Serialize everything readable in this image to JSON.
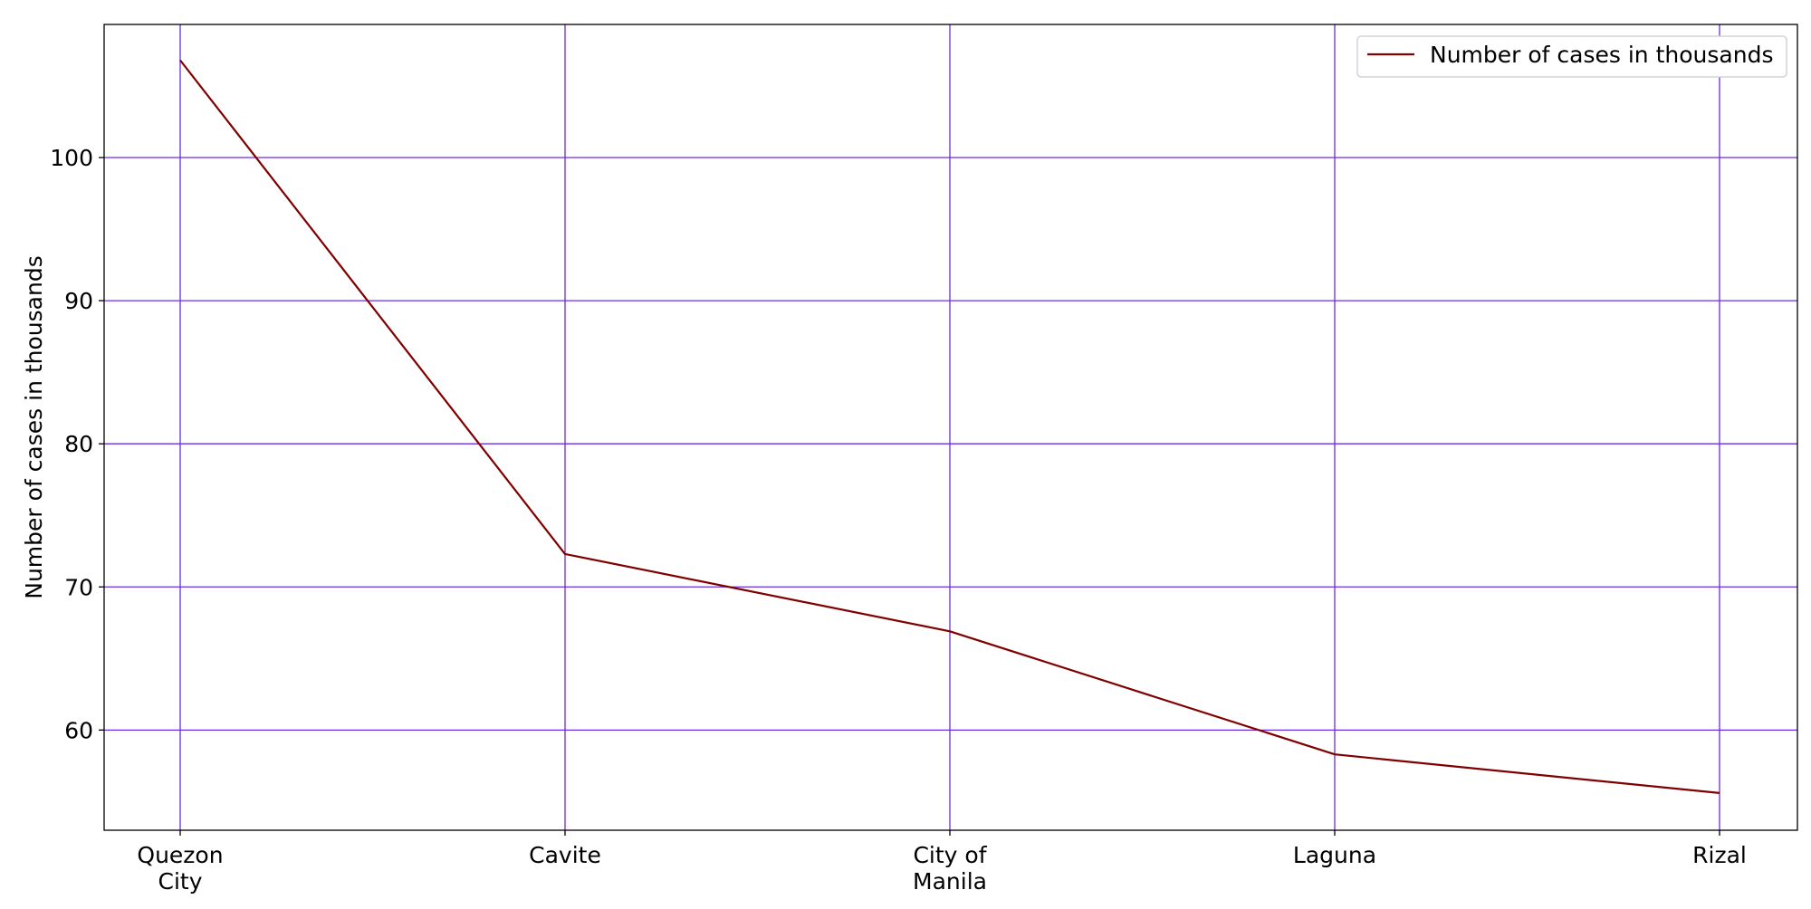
{
  "chart_data": {
    "type": "line",
    "categories": [
      "Quezon City",
      "Cavite",
      "City of Manila",
      "Laguna",
      "Rizal"
    ],
    "category_tick_lines": [
      [
        "Quezon",
        "City"
      ],
      [
        "Cavite"
      ],
      [
        "City of",
        "Manila"
      ],
      [
        "Laguna"
      ],
      [
        "Rizal"
      ]
    ],
    "series": [
      {
        "name": "Number of cases in thousands",
        "values": [
          106.8,
          72.3,
          66.9,
          58.3,
          55.6
        ],
        "color": "#800000"
      }
    ],
    "xlabel": "",
    "ylabel": "Number of cases in thousands",
    "ylim": [
      53.0,
      109.3
    ],
    "yticks": [
      60,
      70,
      80,
      90,
      100
    ],
    "grid": true,
    "grid_color": "#6a2be2",
    "legend_position": "top-right"
  }
}
